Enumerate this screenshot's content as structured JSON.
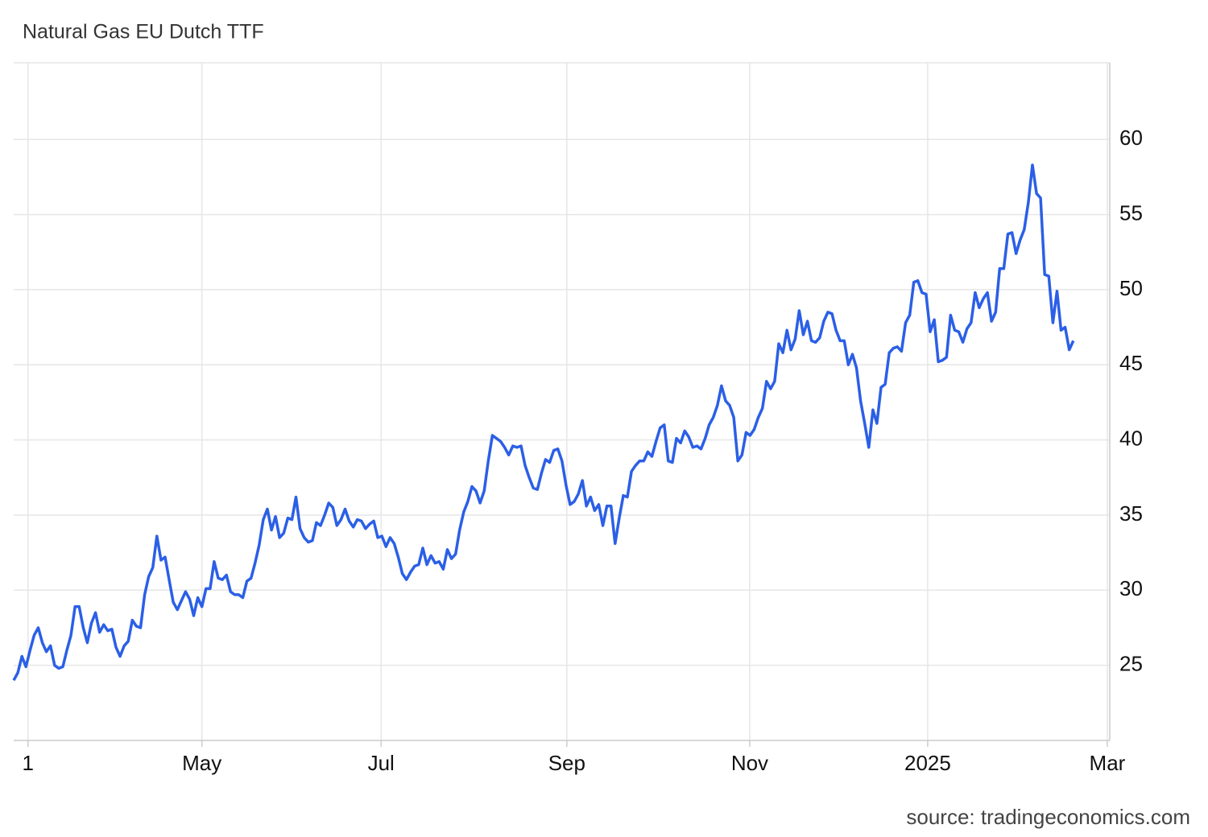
{
  "chart_data": {
    "type": "line",
    "title": "Natural Gas EU Dutch TTF",
    "source": "source: tradingeconomics.com",
    "series": [
      {
        "name": "Natural Gas EU Dutch TTF",
        "color": "#2b5fe6",
        "values": [
          24.0,
          24.5,
          25.6,
          24.9,
          26.0,
          27.0,
          27.5,
          26.5,
          25.9,
          26.3,
          25.0,
          24.8,
          24.9,
          26.0,
          27.0,
          28.9,
          28.9,
          27.5,
          26.5,
          27.8,
          28.5,
          27.2,
          27.7,
          27.3,
          27.4,
          26.2,
          25.6,
          26.3,
          26.6,
          28.0,
          27.6,
          27.5,
          29.7,
          30.9,
          31.5,
          33.6,
          32.0,
          32.2,
          30.7,
          29.2,
          28.7,
          29.3,
          29.9,
          29.4,
          28.3,
          29.5,
          28.9,
          30.1,
          30.1,
          31.9,
          30.8,
          30.7,
          31.0,
          29.9,
          29.7,
          29.7,
          29.5,
          30.6,
          30.8,
          31.8,
          33.0,
          34.7,
          35.4,
          34.0,
          34.9,
          33.5,
          33.8,
          34.8,
          34.7,
          36.2,
          34.1,
          33.5,
          33.2,
          33.3,
          34.5,
          34.3,
          35.0,
          35.8,
          35.5,
          34.3,
          34.7,
          35.4,
          34.6,
          34.2,
          34.7,
          34.6,
          34.1,
          34.4,
          34.6,
          33.5,
          33.6,
          32.9,
          33.5,
          33.1,
          32.2,
          31.1,
          30.7,
          31.2,
          31.6,
          31.7,
          32.8,
          31.7,
          32.3,
          31.8,
          31.9,
          31.4,
          32.7,
          32.1,
          32.4,
          34.0,
          35.2,
          35.9,
          36.9,
          36.6,
          35.8,
          36.6,
          38.6,
          40.3,
          40.1,
          39.9,
          39.5,
          39.0,
          39.6,
          39.5,
          39.6,
          38.3,
          37.5,
          36.8,
          36.7,
          37.8,
          38.7,
          38.5,
          39.3,
          39.4,
          38.6,
          37.0,
          35.7,
          35.9,
          36.4,
          37.3,
          35.6,
          36.2,
          35.3,
          35.7,
          34.3,
          35.6,
          35.6,
          33.1,
          34.8,
          36.3,
          36.2,
          37.9,
          38.3,
          38.6,
          38.6,
          39.2,
          38.9,
          39.9,
          40.8,
          41.0,
          38.6,
          38.5,
          40.1,
          39.8,
          40.6,
          40.2,
          39.5,
          39.6,
          39.4,
          40.1,
          41.0,
          41.5,
          42.3,
          43.6,
          42.6,
          42.3,
          41.5,
          38.6,
          39.0,
          40.5,
          40.3,
          40.7,
          41.5,
          42.1,
          43.9,
          43.4,
          43.9,
          46.4,
          45.8,
          47.3,
          46.0,
          46.7,
          48.6,
          47.0,
          47.9,
          46.6,
          46.5,
          46.8,
          47.9,
          48.5,
          48.4,
          47.3,
          46.6,
          46.6,
          45.0,
          45.7,
          44.8,
          42.6,
          41.1,
          39.5,
          42.0,
          41.1,
          43.5,
          43.7,
          45.8,
          46.1,
          46.2,
          45.9,
          47.8,
          48.3,
          50.5,
          50.6,
          49.8,
          49.7,
          47.2,
          48.0,
          45.2,
          45.3,
          45.5,
          48.3,
          47.3,
          47.2,
          46.5,
          47.4,
          47.8,
          49.8,
          48.8,
          49.4,
          49.8,
          47.9,
          48.5,
          51.4,
          51.4,
          53.7,
          53.8,
          52.4,
          53.3,
          54.0,
          55.8,
          58.3,
          56.4,
          56.1,
          51.0,
          50.9,
          47.8,
          49.9,
          47.3,
          47.5,
          46.0,
          46.6
        ]
      }
    ],
    "xlim": [
      0,
      267.9
    ],
    "xticks": [
      {
        "value": 3.5,
        "label": "1"
      },
      {
        "value": 46,
        "label": "May"
      },
      {
        "value": 89.8,
        "label": "Jul"
      },
      {
        "value": 135.2,
        "label": "Sep"
      },
      {
        "value": 179.9,
        "label": "Nov"
      },
      {
        "value": 223.4,
        "label": "2025"
      },
      {
        "value": 267.3,
        "label": "Mar"
      }
    ],
    "ylim": [
      20,
      65.1
    ],
    "yticks": [
      25,
      30,
      35,
      40,
      45,
      50,
      55,
      60
    ],
    "grid": true
  }
}
